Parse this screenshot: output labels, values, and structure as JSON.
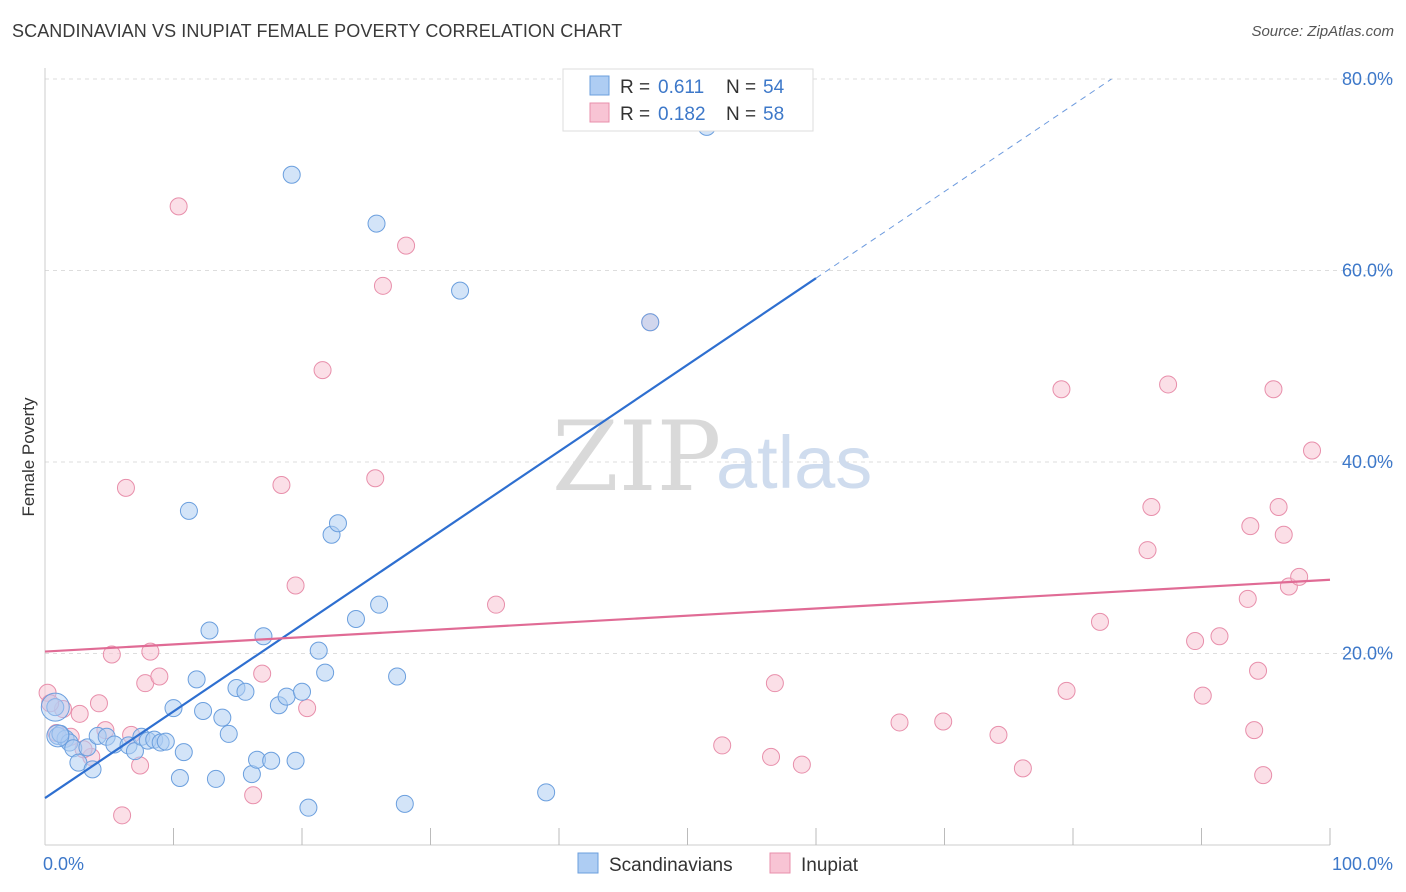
{
  "header": {
    "title": "SCANDINAVIAN VS INUPIAT FEMALE POVERTY CORRELATION CHART",
    "source": "Source: ZipAtlas.com"
  },
  "legend": {
    "rows": [
      {
        "r_label": "R =",
        "r_value": "0.611",
        "n_label": "N =",
        "n_value": "54",
        "color": "#aecdf3"
      },
      {
        "r_label": "R =",
        "r_value": "0.182",
        "n_label": "N =",
        "n_value": "58",
        "color": "#f8c4d4"
      }
    ]
  },
  "watermark": {
    "zip": "ZIP",
    "atlas": "atlas"
  },
  "colors": {
    "blue_fill": "#aecdf3",
    "blue_stroke": "#6b9fde",
    "blue_line": "#2e6fd0",
    "pink_fill": "#f8c4d4",
    "pink_stroke": "#e88fab",
    "pink_line": "#e06b95",
    "grid": "#dddddd",
    "tick_label": "#3d78c9"
  },
  "chart_data": {
    "type": "scatter",
    "title": "SCANDINAVIAN VS INUPIAT FEMALE POVERTY CORRELATION CHART",
    "xlabel": "",
    "ylabel": "Female Poverty",
    "xlim": [
      0,
      100
    ],
    "ylim": [
      0,
      80
    ],
    "x_tick_labels": [
      "0.0%",
      "100.0%"
    ],
    "y_ticks": [
      20,
      40,
      60,
      80
    ],
    "y_tick_labels": [
      "20.0%",
      "40.0%",
      "60.0%",
      "80.0%"
    ],
    "grid": true,
    "legend_position": "bottom-center",
    "series": [
      {
        "name": "Scandinavians",
        "r": 0.611,
        "n": 54,
        "trend": {
          "x0": 0,
          "y0": 4.9,
          "x1": 60,
          "y1": 59.2,
          "dashed_to_x": 83,
          "dashed_to_y": 80
        },
        "points": [
          [
            0.8,
            14.4
          ],
          [
            1.0,
            11.4
          ],
          [
            1.6,
            11.1
          ],
          [
            1.9,
            10.7
          ],
          [
            2.2,
            10.1
          ],
          [
            2.6,
            8.6
          ],
          [
            3.3,
            10.2
          ],
          [
            3.7,
            7.9
          ],
          [
            4.1,
            11.4
          ],
          [
            4.8,
            11.3
          ],
          [
            5.4,
            10.5
          ],
          [
            6.5,
            10.4
          ],
          [
            7.0,
            9.8
          ],
          [
            7.5,
            11.3
          ],
          [
            8.0,
            10.9
          ],
          [
            8.5,
            11.0
          ],
          [
            9.0,
            10.7
          ],
          [
            9.4,
            10.8
          ],
          [
            10.0,
            14.3
          ],
          [
            10.5,
            7.0
          ],
          [
            10.8,
            9.7
          ],
          [
            11.2,
            34.9
          ],
          [
            11.8,
            17.3
          ],
          [
            12.3,
            14.0
          ],
          [
            12.8,
            22.4
          ],
          [
            13.3,
            6.9
          ],
          [
            13.8,
            13.3
          ],
          [
            14.3,
            11.6
          ],
          [
            14.9,
            16.4
          ],
          [
            15.6,
            16.0
          ],
          [
            16.1,
            7.4
          ],
          [
            16.5,
            8.9
          ],
          [
            17.0,
            21.8
          ],
          [
            17.6,
            8.8
          ],
          [
            18.2,
            14.6
          ],
          [
            18.8,
            15.5
          ],
          [
            19.2,
            70.0
          ],
          [
            19.5,
            8.8
          ],
          [
            20.0,
            16.0
          ],
          [
            20.5,
            3.9
          ],
          [
            21.3,
            20.3
          ],
          [
            21.8,
            18.0
          ],
          [
            22.3,
            32.4
          ],
          [
            22.8,
            33.6
          ],
          [
            24.2,
            23.6
          ],
          [
            25.8,
            64.9
          ],
          [
            26.0,
            25.1
          ],
          [
            27.4,
            17.6
          ],
          [
            28.0,
            4.3
          ],
          [
            32.3,
            57.9
          ],
          [
            39.0,
            5.5
          ],
          [
            47.1,
            54.6
          ],
          [
            51.5,
            75.0
          ],
          [
            1.2,
            11.6
          ]
        ]
      },
      {
        "name": "Inupiat",
        "r": 0.182,
        "n": 58,
        "trend": {
          "x0": 0,
          "y0": 20.2,
          "x1": 100,
          "y1": 27.7
        },
        "points": [
          [
            0.2,
            15.9
          ],
          [
            0.9,
            11.7
          ],
          [
            1.4,
            14.2
          ],
          [
            2.0,
            11.3
          ],
          [
            2.7,
            13.7
          ],
          [
            3.6,
            9.2
          ],
          [
            4.2,
            14.8
          ],
          [
            4.7,
            12.0
          ],
          [
            5.2,
            19.9
          ],
          [
            6.0,
            3.1
          ],
          [
            6.3,
            37.3
          ],
          [
            6.7,
            11.5
          ],
          [
            7.4,
            8.3
          ],
          [
            7.8,
            16.9
          ],
          [
            8.2,
            20.2
          ],
          [
            8.9,
            17.6
          ],
          [
            10.4,
            66.7
          ],
          [
            16.2,
            5.2
          ],
          [
            16.9,
            17.9
          ],
          [
            18.4,
            37.6
          ],
          [
            19.5,
            27.1
          ],
          [
            20.4,
            14.3
          ],
          [
            21.6,
            49.6
          ],
          [
            25.7,
            38.3
          ],
          [
            26.3,
            58.4
          ],
          [
            28.1,
            62.6
          ],
          [
            35.1,
            25.1
          ],
          [
            47.1,
            54.6
          ],
          [
            52.7,
            10.4
          ],
          [
            56.5,
            9.2
          ],
          [
            56.8,
            16.9
          ],
          [
            58.9,
            8.4
          ],
          [
            66.5,
            12.8
          ],
          [
            69.9,
            12.9
          ],
          [
            74.2,
            11.5
          ],
          [
            76.1,
            8.0
          ],
          [
            79.1,
            47.6
          ],
          [
            79.5,
            16.1
          ],
          [
            82.1,
            23.3
          ],
          [
            85.8,
            30.8
          ],
          [
            86.1,
            35.3
          ],
          [
            87.4,
            48.1
          ],
          [
            89.5,
            21.3
          ],
          [
            90.1,
            15.6
          ],
          [
            91.4,
            21.8
          ],
          [
            93.6,
            25.7
          ],
          [
            93.8,
            33.3
          ],
          [
            94.1,
            12.0
          ],
          [
            94.4,
            18.2
          ],
          [
            94.8,
            7.3
          ],
          [
            95.6,
            47.6
          ],
          [
            96.0,
            35.3
          ],
          [
            96.4,
            32.4
          ],
          [
            96.8,
            27.0
          ],
          [
            97.6,
            28.0
          ],
          [
            98.6,
            41.2
          ],
          [
            0.4,
            14.8
          ],
          [
            3.0,
            10.0
          ]
        ]
      }
    ]
  },
  "bottom_legend": {
    "items": [
      {
        "label": "Scandinavians"
      },
      {
        "label": "Inupiat"
      }
    ]
  }
}
